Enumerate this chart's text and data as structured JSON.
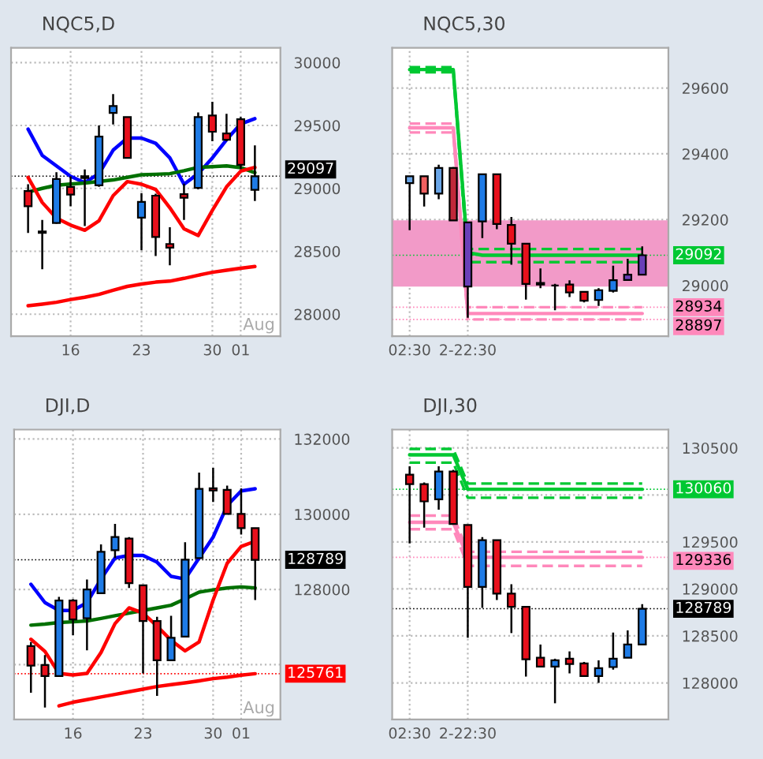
{
  "chart_data": [
    {
      "type": "candlestick",
      "title": "NQC5,D",
      "categories": [
        null,
        null,
        null,
        "16",
        null,
        null,
        null,
        null,
        "23",
        null,
        null,
        null,
        null,
        "30",
        null,
        "01",
        null
      ],
      "ohlc": [
        [
          28979,
          29033,
          28646,
          28858
        ],
        [
          28658,
          28750,
          28358,
          28646
        ],
        [
          28725,
          29129,
          28720,
          29075
        ],
        [
          29012,
          29096,
          28858,
          28950
        ],
        [
          29096,
          29150,
          28700,
          29083
        ],
        [
          29025,
          29500,
          29012,
          29412
        ],
        [
          29600,
          29750,
          29508,
          29654
        ],
        [
          29567,
          29567,
          29242,
          29242
        ],
        [
          28767,
          28962,
          28508,
          28892
        ],
        [
          28942,
          28958,
          28462,
          28613
        ],
        [
          28558,
          28692,
          28388,
          28529
        ],
        [
          28954,
          29038,
          28750,
          28925
        ],
        [
          29004,
          29604,
          28992,
          29567
        ],
        [
          29579,
          29688,
          29375,
          29450
        ],
        [
          29437,
          29592,
          29375,
          29387
        ],
        [
          29550,
          29567,
          29154,
          29187
        ],
        [
          28988,
          29342,
          28900,
          29097
        ]
      ],
      "colors": [
        "#e8101c",
        "#e8101c",
        "#1e7be6",
        "#e8101c",
        "#e8101c",
        "#1e7be6",
        "#1e7be6",
        "#e8101c",
        "#1e7be6",
        "#e8101c",
        "#e8101c",
        "#e8101c",
        "#1e7be6",
        "#e8101c",
        "#e8101c",
        "#e8101c",
        "#1e7be6"
      ],
      "series": [
        {
          "type": "line",
          "color": "#0000ff",
          "values": [
            29471,
            29262,
            29179,
            29096,
            29046,
            29117,
            29304,
            29400,
            29400,
            29358,
            29242,
            29033,
            29117,
            29242,
            29387,
            29512,
            29554
          ]
        },
        {
          "type": "line",
          "color": "#007000",
          "values": [
            28971,
            29000,
            29025,
            29035,
            29042,
            29055,
            29067,
            29088,
            29108,
            29112,
            29117,
            29140,
            29167,
            29172,
            29179,
            29165,
            29125
          ]
        },
        {
          "type": "line",
          "color": "#ff0000",
          "values": [
            29087,
            28888,
            28763,
            28708,
            28667,
            28742,
            28942,
            29054,
            29033,
            28992,
            28846,
            28679,
            28625,
            28825,
            29012,
            29137,
            29167
          ]
        },
        {
          "type": "line",
          "color": "#ff0000",
          "values": [
            28067,
            28080,
            28095,
            28117,
            28135,
            28158,
            28190,
            28221,
            28240,
            28255,
            28263,
            28285,
            28310,
            28333,
            28350,
            28365,
            28379
          ]
        }
      ],
      "ylim": [
        27825,
        30117
      ],
      "yticks": [
        28000,
        28500,
        29000,
        29500,
        30000
      ],
      "grid": true,
      "line_style": "solid",
      "ref_lines": [
        {
          "axis": "y",
          "value": 29097,
          "label": "29097",
          "color": "#000000"
        }
      ],
      "annotations": [
        "Aug"
      ]
    },
    {
      "type": "candlestick",
      "title": "NQC5,30",
      "categories": [
        "02:30",
        null,
        null,
        null,
        "2-22:30",
        null,
        null,
        null,
        null,
        null,
        null,
        null,
        null,
        null,
        null,
        null,
        null
      ],
      "ohlc": [
        [
          29311,
          29332,
          29168,
          29332
        ],
        [
          29332,
          29332,
          29240,
          29279
        ],
        [
          29279,
          29367,
          29262,
          29357
        ],
        [
          29357,
          29360,
          29198,
          29198
        ],
        [
          28997,
          29192,
          28902,
          29192
        ],
        [
          29195,
          29338,
          29144,
          29338
        ],
        [
          29338,
          29338,
          29171,
          29187
        ],
        [
          29184,
          29208,
          29063,
          29127
        ],
        [
          29127,
          29127,
          28957,
          29005
        ],
        [
          29008,
          29052,
          28992,
          29003
        ],
        [
          29000,
          29005,
          28925,
          29000
        ],
        [
          29003,
          29016,
          28965,
          28979
        ],
        [
          28981,
          28981,
          28949,
          28954
        ],
        [
          28956,
          28992,
          28938,
          28986
        ],
        [
          28984,
          29060,
          28979,
          29016
        ],
        [
          29017,
          29081,
          29017,
          29033
        ],
        [
          29033,
          29119,
          29033,
          29092
        ]
      ],
      "colors": [
        "#6aa6e8",
        "#f06060",
        "#6aa6e8",
        "#c0283a",
        "#6a40b8",
        "#1e7be6",
        "#e8101c",
        "#e8101c",
        "#e8101c",
        "#e8101c",
        "#000000",
        "#e8101c",
        "#e8101c",
        "#1e7be6",
        "#1e7be6",
        "#6a40b8",
        "#6a40b8"
      ],
      "series": [
        {
          "type": "line",
          "color": "#00c832",
          "line_style": "dashed",
          "values": [
            29663,
            29663,
            29663,
            29663,
            29111,
            29111,
            29111,
            29111,
            29111,
            29111,
            29111,
            29111,
            29111,
            29111,
            29111,
            29111,
            29111
          ]
        },
        {
          "type": "line",
          "color": "#00c832",
          "line_style": "dashed",
          "values": [
            29648,
            29648,
            29648,
            29648,
            29071,
            29071,
            29071,
            29071,
            29071,
            29071,
            29071,
            29071,
            29071,
            29071,
            29071,
            29071,
            29071
          ]
        },
        {
          "type": "line",
          "color": "#ff88bb",
          "line_style": "dashed",
          "values": [
            29492,
            29492,
            29492,
            29492,
            28934,
            28934,
            28934,
            28934,
            28934,
            28934,
            28934,
            28934,
            28934,
            28934,
            28934,
            28934,
            28934
          ]
        },
        {
          "type": "line",
          "color": "#ff88bb",
          "line_style": "dashed",
          "values": [
            29465,
            29465,
            29465,
            29465,
            28897,
            28897,
            28897,
            28897,
            28897,
            28897,
            28897,
            28897,
            28897,
            28897,
            28897,
            28897,
            28897
          ]
        },
        {
          "type": "line",
          "color": "#ff88bb",
          "line_style": "solid",
          "values": [
            29479,
            29479,
            29479,
            29479,
            28915,
            28915,
            28915,
            28915,
            28915,
            28915,
            28915,
            28915,
            28915,
            28915,
            28915,
            28915,
            28915
          ]
        },
        {
          "type": "line",
          "color": "#00c832",
          "line_style": "solid",
          "values": [
            29656,
            29656,
            29656,
            29656,
            29100,
            29092,
            29092,
            29092,
            29092,
            29092,
            29092,
            29092,
            29092,
            29092,
            29092,
            29092,
            29092
          ]
        }
      ],
      "bands": [
        {
          "axis": "y",
          "from": 28997,
          "to": 29198,
          "color": "#f29ac8"
        }
      ],
      "ylim": [
        28846,
        29722
      ],
      "yticks": [
        29000,
        29200,
        29400,
        29600
      ],
      "grid": true,
      "ref_lines": [
        {
          "axis": "y",
          "value": 29092,
          "label": "29092",
          "color": "#00c832"
        },
        {
          "axis": "y",
          "value": 28934,
          "label": "28934",
          "color": "#ff88bb"
        },
        {
          "axis": "y",
          "value": 28897,
          "label": "28897",
          "color": "#ff88bb"
        }
      ]
    },
    {
      "type": "candlestick",
      "title": "DJI,D",
      "categories": [
        null,
        null,
        null,
        "16",
        null,
        null,
        null,
        null,
        "23",
        null,
        null,
        null,
        null,
        "30",
        null,
        "01",
        null
      ],
      "ohlc": [
        [
          126494,
          126605,
          125253,
          125978
        ],
        [
          125992,
          126257,
          124863,
          125699
        ],
        [
          125699,
          127804,
          125699,
          127706
        ],
        [
          127706,
          127748,
          126786,
          127205
        ],
        [
          127233,
          128264,
          126382,
          128000
        ],
        [
          127902,
          129198,
          127902,
          129003
        ],
        [
          129045,
          129742,
          128836,
          129393
        ],
        [
          129351,
          129393,
          128041,
          128167
        ],
        [
          128111,
          128111,
          125769,
          127163
        ],
        [
          127163,
          127274,
          125169,
          126117
        ],
        [
          126117,
          127302,
          126117,
          126717
        ],
        [
          126745,
          129254,
          126745,
          128794
        ],
        [
          128836,
          131108,
          128836,
          130676
        ],
        [
          130690,
          131233,
          130327,
          130634
        ],
        [
          130648,
          130759,
          130007,
          130007
        ],
        [
          130007,
          130690,
          129463,
          129630
        ],
        [
          129630,
          129630,
          127720,
          128789
        ]
      ],
      "colors": [
        "#e8101c",
        "#e8101c",
        "#1e7be6",
        "#e8101c",
        "#1e7be6",
        "#1e7be6",
        "#1e7be6",
        "#e8101c",
        "#e8101c",
        "#e8101c",
        "#1e7be6",
        "#1e7be6",
        "#1e7be6",
        "#e8101c",
        "#e8101c",
        "#e8101c",
        "#e8101c"
      ],
      "series": [
        {
          "type": "line",
          "color": "#0000ff",
          "values": [
            128139,
            127651,
            127442,
            127442,
            127651,
            128278,
            128836,
            128905,
            128905,
            128724,
            128348,
            128278,
            128836,
            129393,
            130230,
            130620,
            130676
          ]
        },
        {
          "type": "line",
          "color": "#007000",
          "values": [
            127051,
            127080,
            127121,
            127140,
            127163,
            127230,
            127302,
            127370,
            127442,
            127510,
            127581,
            127750,
            127930,
            127990,
            128041,
            128069,
            128041
          ]
        },
        {
          "type": "line",
          "color": "#ff0000",
          "values": [
            126675,
            126354,
            125769,
            125727,
            125769,
            126326,
            127093,
            127512,
            127372,
            127024,
            126647,
            126368,
            126605,
            127720,
            128696,
            129142,
            129282
          ]
        },
        {
          "type": "line",
          "color": "#ff0000",
          "values": [
            null,
            null,
            124905,
            125002,
            125070,
            125141,
            125210,
            125281,
            125350,
            125420,
            125470,
            125518,
            125570,
            125630,
            125670,
            125720,
            125761
          ]
        }
      ],
      "ylim": [
        124542,
        132251
      ],
      "yticks": [
        {
          "value": 126000,
          "label": null
        },
        128000,
        130000,
        132000
      ],
      "grid": true,
      "line_style": "solid",
      "ref_lines": [
        {
          "axis": "y",
          "value": 128789,
          "label": "128789",
          "color": "#000000"
        },
        {
          "axis": "y",
          "value": 125761,
          "label": "125761",
          "color": "#ff0000"
        }
      ],
      "annotations": [
        "Aug"
      ]
    },
    {
      "type": "candlestick",
      "title": "DJI,30",
      "categories": [
        "02:30",
        null,
        null,
        null,
        "2-22:30",
        null,
        null,
        null,
        null,
        null,
        null,
        null,
        null,
        null,
        null,
        null,
        null
      ],
      "ohlc": [
        [
          130215,
          130305,
          129484,
          130115
        ],
        [
          130115,
          130132,
          129652,
          129931
        ],
        [
          129953,
          130305,
          129842,
          130249
        ],
        [
          130249,
          130266,
          129691,
          129691
        ],
        [
          129680,
          129680,
          128480,
          129021
        ],
        [
          129021,
          129551,
          128798,
          129518
        ],
        [
          129518,
          129518,
          128882,
          128949
        ],
        [
          128949,
          129049,
          128530,
          128809
        ],
        [
          128809,
          128809,
          128067,
          128251
        ],
        [
          128268,
          128408,
          128173,
          128173
        ],
        [
          128173,
          128257,
          127783,
          128240
        ],
        [
          128257,
          128335,
          128101,
          128201
        ],
        [
          128207,
          128223,
          128073,
          128073
        ],
        [
          128073,
          128240,
          128000,
          128156
        ],
        [
          128168,
          128536,
          128140,
          128257
        ],
        [
          128268,
          128558,
          128268,
          128408
        ],
        [
          128408,
          128837,
          128408,
          128789
        ]
      ],
      "colors": [
        "#e8101c",
        "#e8101c",
        "#1e7be6",
        "#e8101c",
        "#e8101c",
        "#1e7be6",
        "#e8101c",
        "#e8101c",
        "#e8101c",
        "#e8101c",
        "#1e7be6",
        "#e8101c",
        "#e8101c",
        "#1e7be6",
        "#1e7be6",
        "#1e7be6",
        "#1e7be6"
      ],
      "series": [
        {
          "type": "line",
          "color": "#00c832",
          "line_style": "dashed",
          "values": [
            130489,
            130489,
            130489,
            130489,
            130121,
            130121,
            130121,
            130121,
            130121,
            130121,
            130121,
            130121,
            130121,
            130121,
            130121,
            130121,
            130121
          ]
        },
        {
          "type": "line",
          "color": "#00c832",
          "line_style": "dashed",
          "values": [
            130344,
            130344,
            130344,
            130344,
            129970,
            129970,
            129970,
            129970,
            129970,
            129970,
            129970,
            129970,
            129970,
            129970,
            129970,
            129970,
            129970
          ]
        },
        {
          "type": "line",
          "color": "#ff88bb",
          "line_style": "dashed",
          "values": [
            129780,
            129780,
            129780,
            129780,
            129395,
            129395,
            129395,
            129395,
            129395,
            129395,
            129395,
            129395,
            129395,
            129395,
            129395,
            129395,
            129395
          ]
        },
        {
          "type": "line",
          "color": "#ff88bb",
          "line_style": "dashed",
          "values": [
            129635,
            129635,
            129635,
            129635,
            129245,
            129245,
            129245,
            129245,
            129245,
            129245,
            129245,
            129245,
            129245,
            129245,
            129245,
            129245,
            129245
          ]
        },
        {
          "type": "line",
          "color": "#ff88bb",
          "line_style": "solid",
          "values": [
            129708,
            129708,
            129708,
            129708,
            129336,
            129336,
            129336,
            129336,
            129336,
            129336,
            129336,
            129336,
            129336,
            129336,
            129336,
            129336,
            129336
          ]
        },
        {
          "type": "line",
          "color": "#00c832",
          "line_style": "solid",
          "values": [
            130427,
            130427,
            130427,
            130427,
            130060,
            130060,
            130060,
            130060,
            130060,
            130060,
            130060,
            130060,
            130060,
            130060,
            130060,
            130060,
            130060
          ]
        }
      ],
      "ylim": [
        127610,
        130695
      ],
      "yticks": [
        128000,
        128500,
        129000,
        129500,
        {
          "value": 130000,
          "label": null
        },
        130500
      ],
      "grid": true,
      "ref_lines": [
        {
          "axis": "y",
          "value": 130060,
          "label": "130060",
          "color": "#00c832"
        },
        {
          "axis": "y",
          "value": 129336,
          "label": "129336",
          "color": "#ff88bb"
        },
        {
          "axis": "y",
          "value": 128789,
          "label": "128789",
          "color": "#000000"
        }
      ]
    }
  ]
}
